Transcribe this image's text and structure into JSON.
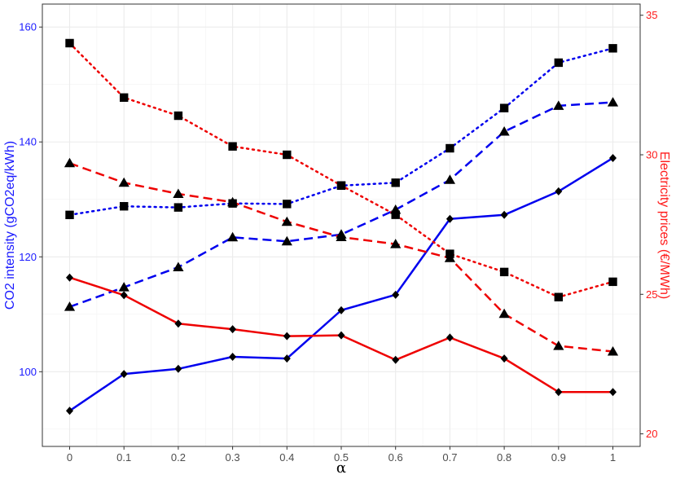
{
  "chart_data": {
    "type": "line",
    "xlabel": "α",
    "ylabel_left": "CO2 intensity (gCO2eq/kWh)",
    "ylabel_right": "Electricity prices (€/MWh)",
    "x": [
      0,
      0.1,
      0.2,
      0.3,
      0.4,
      0.5,
      0.6,
      0.7,
      0.8,
      0.9,
      1
    ],
    "x_tick_labels": [
      "0",
      "0.1",
      "0.2",
      "0.3",
      "0.4",
      "0.5",
      "0.6",
      "0.7",
      "0.8",
      "0.9",
      "1"
    ],
    "y_left_ticks": [
      "100",
      "120",
      "140",
      "160"
    ],
    "y_right_ticks": [
      "20",
      "25",
      "30",
      "35"
    ],
    "ylim_left": [
      87,
      164
    ],
    "ylim_right": [
      19.55,
      35.4
    ],
    "grid": true,
    "legend": "none",
    "colors": {
      "co2": "#0000ee",
      "price": "#ee0000"
    },
    "series": [
      {
        "axis": "left",
        "color": "co2",
        "dash": "solid",
        "marker": "diamond",
        "values": [
          93.2,
          99.6,
          100.5,
          102.6,
          102.3,
          110.7,
          113.4,
          126.6,
          127.3,
          131.4,
          137.2
        ]
      },
      {
        "axis": "left",
        "color": "co2",
        "dash": "dashed",
        "marker": "triangle",
        "values": [
          111.3,
          114.7,
          118.2,
          123.4,
          122.7,
          123.9,
          128.2,
          133.4,
          141.8,
          146.3,
          146.9
        ]
      },
      {
        "axis": "left",
        "color": "co2",
        "dash": "dotted",
        "marker": "square",
        "values": [
          127.3,
          128.8,
          128.6,
          129.3,
          129.2,
          132.4,
          132.9,
          138.9,
          145.9,
          153.8,
          156.3
        ]
      },
      {
        "axis": "right",
        "color": "price",
        "dash": "solid",
        "marker": "diamond",
        "values": [
          25.6,
          24.97,
          23.95,
          23.75,
          23.5,
          23.53,
          22.65,
          23.45,
          22.7,
          21.5,
          21.5
        ]
      },
      {
        "axis": "right",
        "color": "price",
        "dash": "dashed",
        "marker": "triangle",
        "values": [
          29.7,
          29.0,
          28.6,
          28.3,
          27.6,
          27.05,
          26.8,
          26.3,
          24.3,
          23.15,
          22.95
        ]
      },
      {
        "axis": "right",
        "color": "price",
        "dash": "dotted",
        "marker": "square",
        "values": [
          34.0,
          32.05,
          31.4,
          30.3,
          30.0,
          28.9,
          27.85,
          26.45,
          25.8,
          24.9,
          25.45
        ]
      }
    ]
  }
}
